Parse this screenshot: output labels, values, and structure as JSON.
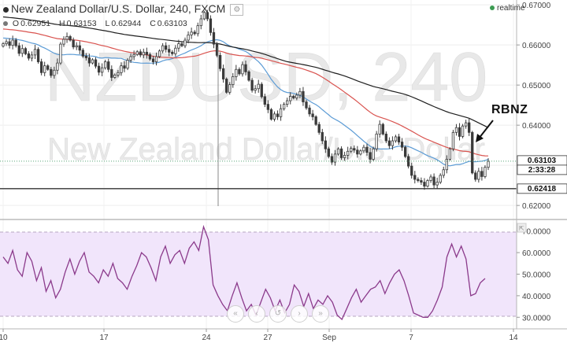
{
  "header": {
    "title": "New Zealand Dollar/U.S. Dollar, 240, FXCM",
    "settings_icon": "gear-icon",
    "realtime": "realtime",
    "ohlc": [
      {
        "key": "O",
        "value": "0.62951"
      },
      {
        "key": "H",
        "value": "0.63153"
      },
      {
        "key": "L",
        "value": "0.62944"
      },
      {
        "key": "C",
        "value": "0.63103"
      }
    ]
  },
  "watermark": {
    "symbol": "NZDUSD, 240",
    "name": "New Zealand Dollar/U.S. Dollar"
  },
  "annotation": {
    "text": "RBNZ"
  },
  "price_labels": {
    "last": "0.63103",
    "countdown": "2:33:28",
    "level": "0.62418"
  },
  "nav_buttons": [
    "«",
    "‹",
    "↺",
    "›",
    "»"
  ],
  "colors": {
    "up_candle": "#3a3a3a",
    "down_candle": "#3a3a3a",
    "sma_black": "#1e1e1e",
    "sma_red": "#d9534f",
    "sma_blue": "#5b9bd5",
    "rsi_line": "#8b3a8b",
    "rsi_band": "#f1e5fb",
    "level_line": "#333333",
    "last_price_box": "#ffffff"
  },
  "chart_data": [
    {
      "type": "candlestick",
      "title": "New Zealand Dollar/U.S. Dollar, 240, FXCM",
      "x_tick_labels": [
        "10",
        "17",
        "24",
        "27",
        "Sep",
        "7",
        "14"
      ],
      "y_tick_labels": [
        "0.67000",
        "0.66000",
        "0.65000",
        "0.64000",
        "0.63000",
        "0.62000"
      ],
      "ylim": [
        0.6165,
        0.6712
      ],
      "horizontal_line": 0.62418,
      "last_close": 0.63103,
      "series": [
        {
          "name": "close",
          "values": [
            0.6603,
            0.6608,
            0.6599,
            0.6612,
            0.6598,
            0.6579,
            0.6591,
            0.6578,
            0.6567,
            0.6575,
            0.6589,
            0.6558,
            0.6531,
            0.6548,
            0.6539,
            0.6524,
            0.6537,
            0.6555,
            0.6602,
            0.6614,
            0.6621,
            0.6612,
            0.6595,
            0.6598,
            0.6587,
            0.6572,
            0.6568,
            0.6555,
            0.6563,
            0.6547,
            0.6532,
            0.6543,
            0.6558,
            0.6539,
            0.6519,
            0.6525,
            0.6531,
            0.6548,
            0.6542,
            0.6562,
            0.6571,
            0.6576,
            0.6583,
            0.6575,
            0.6582,
            0.6576,
            0.6565,
            0.6558,
            0.6571,
            0.6585,
            0.6598,
            0.6589,
            0.6582,
            0.6578,
            0.6592,
            0.6603,
            0.6598,
            0.6612,
            0.6625,
            0.6632,
            0.6628,
            0.6648,
            0.6665,
            0.6681,
            0.6665,
            0.6631,
            0.6602,
            0.6574,
            0.6541,
            0.6515,
            0.6482,
            0.6501,
            0.6521,
            0.6539,
            0.6528,
            0.6551,
            0.6533,
            0.6512,
            0.6487,
            0.6491,
            0.6502,
            0.6471,
            0.6452,
            0.6439,
            0.6415,
            0.6428,
            0.6421,
            0.6441,
            0.6452,
            0.6461,
            0.6472,
            0.6468,
            0.6475,
            0.6484,
            0.6458,
            0.6443,
            0.6428,
            0.6421,
            0.6402,
            0.6382,
            0.6361,
            0.6341,
            0.6322,
            0.6308,
            0.6328,
            0.6341,
            0.6319,
            0.6325,
            0.6335,
            0.6342,
            0.6338,
            0.6328,
            0.6336,
            0.6345,
            0.6332,
            0.6315,
            0.6341,
            0.6378,
            0.6402,
            0.6378,
            0.6361,
            0.6349,
            0.6361,
            0.6371,
            0.6358,
            0.6345,
            0.6322,
            0.6298,
            0.6275,
            0.6265,
            0.6262,
            0.6258,
            0.6248,
            0.6262,
            0.6271,
            0.6251,
            0.6258,
            0.6275,
            0.6289,
            0.6315,
            0.6341,
            0.6382,
            0.6394,
            0.6372,
            0.6398,
            0.6406,
            0.6382,
            0.6281,
            0.6265,
            0.6285,
            0.6272,
            0.6295,
            0.631
          ]
        }
      ]
    },
    {
      "type": "line",
      "title": "",
      "y_tick_labels": [
        "70.0000",
        "60.0000",
        "50.0000",
        "40.0000",
        "30.0000"
      ],
      "ylim": [
        25,
        75
      ],
      "bands": [
        30,
        70
      ],
      "series": [
        {
          "name": "",
          "values": [
            58,
            55,
            61,
            52,
            49,
            60,
            56,
            47,
            53,
            42,
            47,
            39,
            43,
            51,
            57,
            50,
            56,
            60,
            51,
            49,
            46,
            52,
            49,
            55,
            48,
            46,
            43,
            49,
            54,
            60,
            58,
            53,
            47,
            58,
            63,
            55,
            59,
            61,
            55,
            62,
            65,
            61,
            72,
            66,
            45,
            40,
            36,
            33,
            40,
            46,
            39,
            33,
            36,
            31,
            37,
            43,
            39,
            33,
            38,
            32,
            36,
            45,
            42,
            35,
            41,
            34,
            38,
            36,
            40,
            37,
            31,
            29,
            34,
            39,
            43,
            37,
            40,
            43,
            44,
            47,
            41,
            46,
            50,
            52,
            47,
            40,
            32,
            31,
            30,
            30,
            33,
            38,
            44,
            58,
            64,
            58,
            63,
            57,
            40,
            41,
            46,
            48
          ]
        }
      ]
    }
  ]
}
